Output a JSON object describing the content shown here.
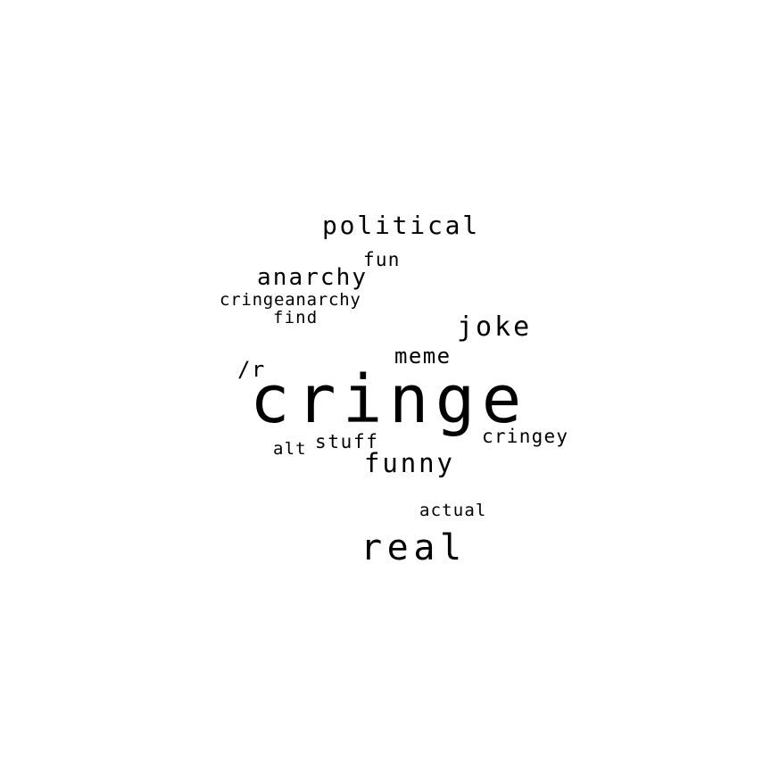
{
  "word_cloud": {
    "text_color": "#000000",
    "background_color": "#ffffff",
    "words": {
      "political": "political",
      "fun": "fun",
      "anarchy": "anarchy",
      "cringeanarchy": "cringeanarchy",
      "find": "find",
      "joke": "joke",
      "meme": "meme",
      "r": "/r",
      "cringe": "cringe",
      "cringey": "cringey",
      "stuff": "stuff",
      "alt": "alt",
      "funny": "funny",
      "actual": "actual",
      "real": "real"
    }
  }
}
